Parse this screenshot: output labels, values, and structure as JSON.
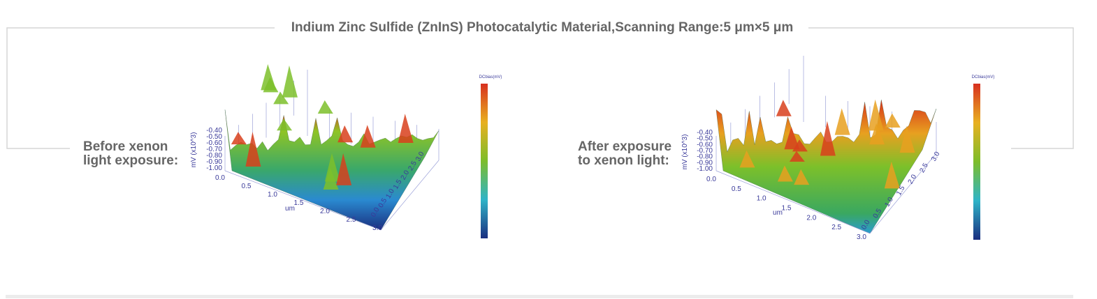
{
  "header": {
    "title": "Indium Zinc Sulfide (ZnInS) Photocatalytic Material,Scanning Range:5 μm×5 μm"
  },
  "panels": [
    {
      "label": [
        "Before xenon",
        "light exposure:"
      ],
      "z_axis_label": "mV (x10^3)",
      "z_ticks": [
        "-0.40",
        "-0.50",
        "-0.60",
        "-0.70",
        "-0.80",
        "-0.90",
        "-1.00"
      ],
      "x_ticks": [
        "0.0",
        "0.5",
        "1.0",
        "1.5",
        "2.0",
        "2.5",
        "3.0"
      ],
      "x_label": "um",
      "y_ticks": [
        "0.0",
        "0.5",
        "1.0",
        "1.5",
        "2.0",
        "2.5",
        "3.0"
      ],
      "colorbar_title": "DCbias(mV)"
    },
    {
      "label": [
        "After exposure",
        "to xenon light:"
      ],
      "z_axis_label": "mV (x10^3)",
      "z_ticks": [
        "-0.40",
        "-0.50",
        "-0.60",
        "-0.70",
        "-0.80",
        "-0.90",
        "-1.00"
      ],
      "x_ticks": [
        "0.0",
        "0.5",
        "1.0",
        "1.5",
        "2.0",
        "2.5",
        "3.0"
      ],
      "x_label": "um",
      "y_ticks": [
        "0.0",
        "0.5",
        "1.0",
        "1.5",
        "2.0",
        "2.5",
        "3.0"
      ],
      "colorbar_title": "DCbias(mV)"
    }
  ]
}
